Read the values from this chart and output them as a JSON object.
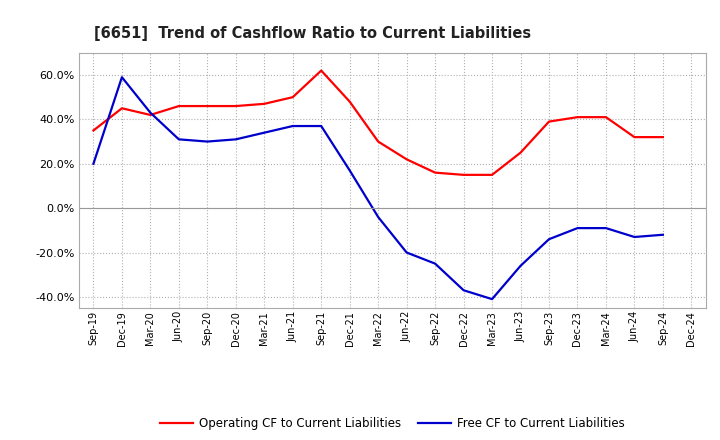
{
  "title": "[6651]  Trend of Cashflow Ratio to Current Liabilities",
  "x_labels": [
    "Sep-19",
    "Dec-19",
    "Mar-20",
    "Jun-20",
    "Sep-20",
    "Dec-20",
    "Mar-21",
    "Jun-21",
    "Sep-21",
    "Dec-21",
    "Mar-22",
    "Jun-22",
    "Sep-22",
    "Dec-22",
    "Mar-23",
    "Jun-23",
    "Sep-23",
    "Dec-23",
    "Mar-24",
    "Jun-24",
    "Sep-24",
    "Dec-24"
  ],
  "operating_cf": [
    0.35,
    0.45,
    0.42,
    0.46,
    0.46,
    0.46,
    0.47,
    0.5,
    0.62,
    0.48,
    0.3,
    0.22,
    0.16,
    0.15,
    0.15,
    0.25,
    0.39,
    0.41,
    0.41,
    0.32,
    0.32,
    null
  ],
  "free_cf": [
    0.2,
    0.59,
    0.43,
    0.31,
    0.3,
    0.31,
    0.34,
    0.37,
    0.37,
    0.17,
    -0.04,
    -0.2,
    -0.25,
    -0.37,
    -0.41,
    -0.26,
    -0.14,
    -0.09,
    -0.09,
    -0.13,
    -0.12,
    null
  ],
  "ylim": [
    -0.45,
    0.7
  ],
  "yticks": [
    -0.4,
    -0.2,
    0.0,
    0.2,
    0.4,
    0.6
  ],
  "operating_color": "#ff0000",
  "free_color": "#0000cc",
  "background_color": "#ffffff",
  "grid_color": "#b0b0b0",
  "legend_op": "Operating CF to Current Liabilities",
  "legend_free": "Free CF to Current Liabilities"
}
